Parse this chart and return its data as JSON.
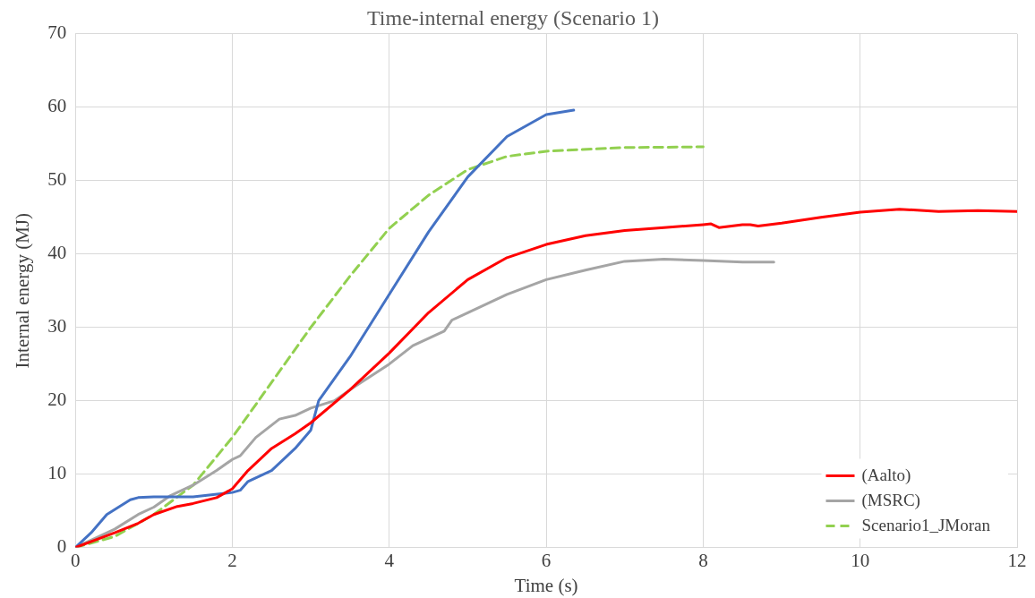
{
  "chart_data": {
    "type": "line",
    "title": "Time-internal energy (Scenario 1)",
    "xlabel": "Time (s)",
    "ylabel": "Internal energy (MJ)",
    "xlim": [
      0,
      12
    ],
    "xticks": [
      0,
      2,
      4,
      6,
      8,
      10,
      12
    ],
    "ylim": [
      0,
      70
    ],
    "yticks": [
      0,
      10,
      20,
      30,
      40,
      50,
      60,
      70
    ],
    "grid": true,
    "legend": "bottom right",
    "marker": "none",
    "series": [
      {
        "name": "(Aalto)",
        "color": "#ff0000",
        "line_style": "solid",
        "x": [
          0,
          0.5,
          0.8,
          1,
          1.3,
          1.5,
          1.8,
          2,
          2.2,
          2.5,
          2.8,
          3,
          3.5,
          4,
          4.5,
          5,
          5.5,
          6,
          6.5,
          7,
          7.5,
          8,
          8.1,
          8.2,
          8.5,
          8.6,
          8.7,
          9,
          9.5,
          10,
          10.5,
          11,
          11.5,
          12
        ],
        "values": [
          0,
          2,
          3.3,
          4.5,
          5.6,
          6,
          6.8,
          8,
          10.5,
          13.5,
          15.5,
          17,
          21.5,
          26.5,
          32,
          36.5,
          39.5,
          41.3,
          42.5,
          43.2,
          43.6,
          44,
          44.1,
          43.6,
          44,
          44,
          43.8,
          44.2,
          45,
          45.7,
          46.1,
          45.8,
          45.9,
          45.8
        ]
      },
      {
        "color": "#4472c4",
        "line_style": "solid",
        "x": [
          0,
          0.2,
          0.4,
          0.7,
          0.8,
          1,
          1.5,
          2,
          2.1,
          2.2,
          2.5,
          2.8,
          3,
          3.1,
          3.5,
          4,
          4.5,
          5,
          5.5,
          6,
          6.35
        ],
        "values": [
          0,
          2,
          4.5,
          6.5,
          6.8,
          6.9,
          6.9,
          7.5,
          7.8,
          9,
          10.5,
          13.5,
          16,
          20,
          26,
          34.5,
          43,
          50.5,
          56,
          59,
          59.6
        ]
      },
      {
        "name": "(MSRC)",
        "color": "#a5a5a5",
        "line_style": "solid",
        "x": [
          0,
          0.5,
          0.8,
          1,
          1.2,
          1.5,
          1.8,
          2,
          2.1,
          2.3,
          2.6,
          2.8,
          3,
          3.3,
          3.5,
          4,
          4.3,
          4.7,
          4.8,
          5,
          5.5,
          6,
          6.5,
          7,
          7.5,
          8,
          8.5,
          8.9
        ],
        "values": [
          0,
          2.5,
          4.5,
          5.5,
          7,
          8.5,
          10.5,
          12,
          12.5,
          15,
          17.5,
          18,
          19,
          20,
          21.5,
          25,
          27.5,
          29.5,
          31,
          32,
          34.5,
          36.5,
          37.8,
          39,
          39.3,
          39.1,
          38.9,
          38.9
        ]
      },
      {
        "name": "Scenario1_JMoran",
        "color": "#92d050",
        "line_style": "dashed",
        "x": [
          0,
          0.5,
          1,
          1.5,
          2,
          2.5,
          3,
          3.5,
          4,
          4.5,
          5,
          5.5,
          6,
          7,
          8
        ],
        "values": [
          0,
          1.5,
          4.5,
          8.5,
          15,
          22.5,
          30,
          37,
          43.5,
          48,
          51.5,
          53.3,
          54,
          54.5,
          54.6
        ]
      }
    ]
  }
}
